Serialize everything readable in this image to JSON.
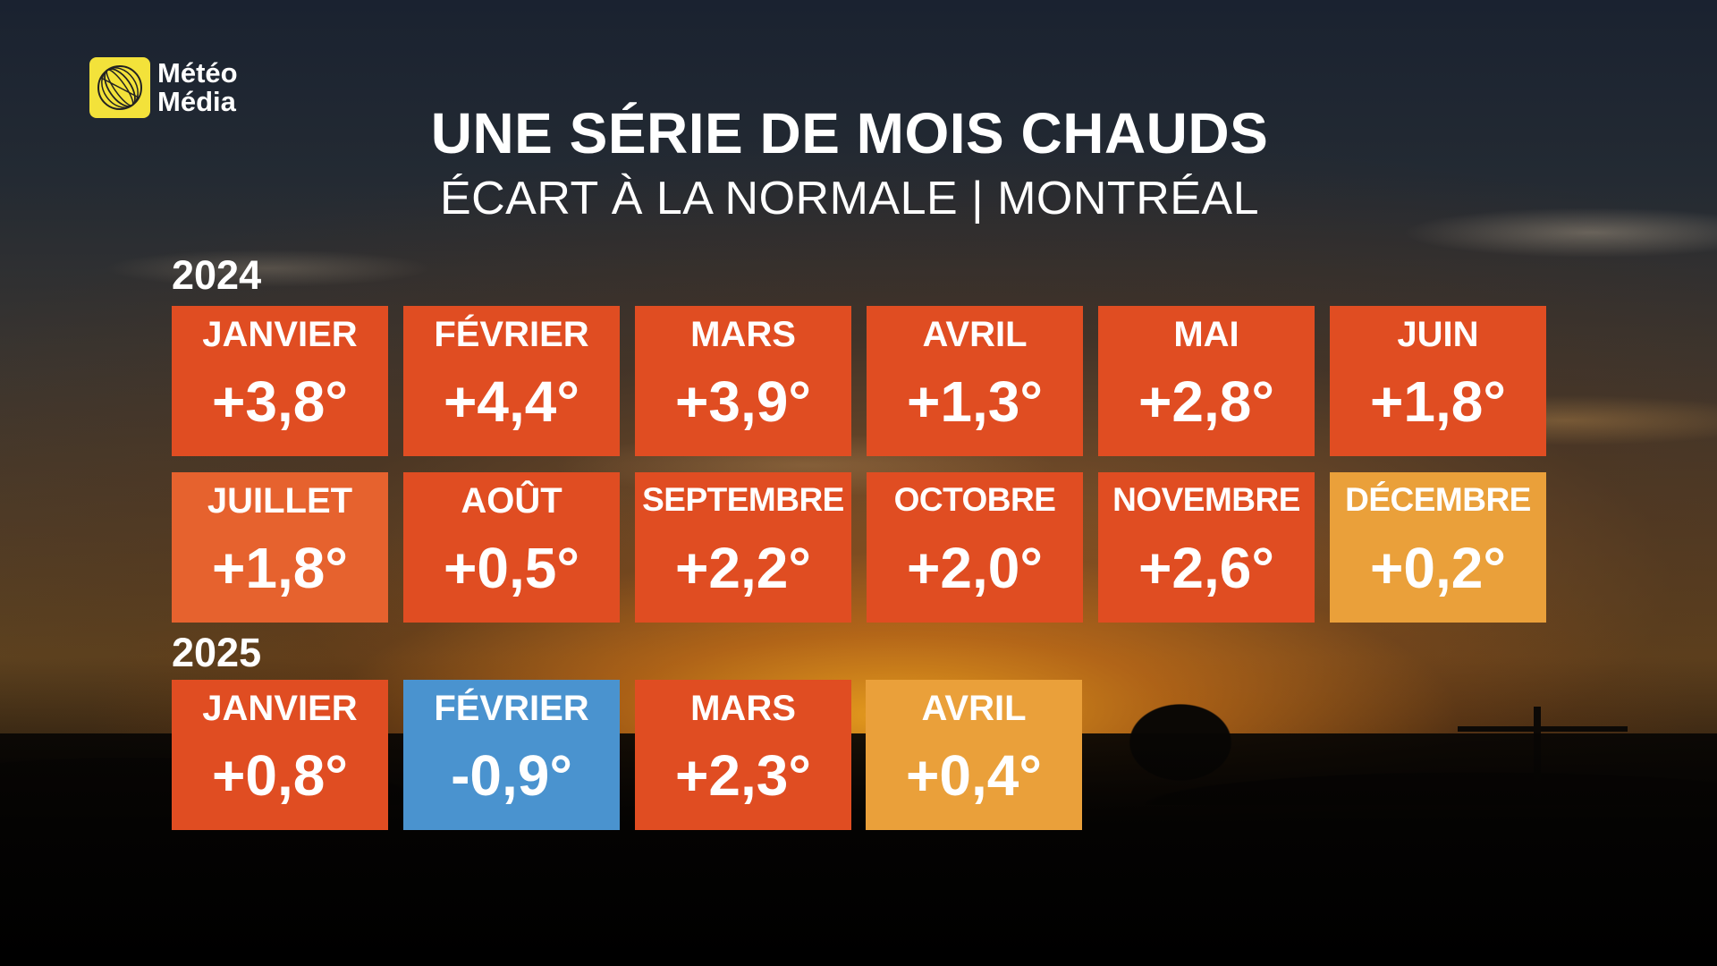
{
  "brand": {
    "line1": "Météo",
    "line2": "Média",
    "logo_color": "#f3e23a"
  },
  "title": "UNE SÉRIE DE MOIS CHAUDS",
  "subtitle": "ÉCART À LA NORMALE | MONTRÉAL",
  "colors": {
    "warm": "#e04d22",
    "warm_light": "#e6622e",
    "mild": "#eaa03a",
    "cold": "#4a93cf"
  },
  "years": [
    {
      "year": "2024",
      "months": [
        {
          "name": "JANVIER",
          "value": "+3,8°",
          "color": "#e04d22"
        },
        {
          "name": "FÉVRIER",
          "value": "+4,4°",
          "color": "#e04d22"
        },
        {
          "name": "MARS",
          "value": "+3,9°",
          "color": "#e04d22"
        },
        {
          "name": "AVRIL",
          "value": "+1,3°",
          "color": "#e04d22"
        },
        {
          "name": "MAI",
          "value": "+2,8°",
          "color": "#e04d22"
        },
        {
          "name": "JUIN",
          "value": "+1,8°",
          "color": "#e04d22"
        },
        {
          "name": "JUILLET",
          "value": "+1,8°",
          "color": "#e6622e"
        },
        {
          "name": "AOÛT",
          "value": "+0,5°",
          "color": "#e04d22"
        },
        {
          "name": "SEPTEMBRE",
          "value": "+2,2°",
          "color": "#e04d22"
        },
        {
          "name": "OCTOBRE",
          "value": "+2,0°",
          "color": "#e04d22"
        },
        {
          "name": "NOVEMBRE",
          "value": "+2,6°",
          "color": "#e04d22"
        },
        {
          "name": "DÉCEMBRE",
          "value": "+0,2°",
          "color": "#eaa03a"
        }
      ]
    },
    {
      "year": "2025",
      "months": [
        {
          "name": "JANVIER",
          "value": "+0,8°",
          "color": "#e04d22"
        },
        {
          "name": "FÉVRIER",
          "value": "-0,9°",
          "color": "#4a93cf"
        },
        {
          "name": "MARS",
          "value": "+2,3°",
          "color": "#e04d22"
        },
        {
          "name": "AVRIL",
          "value": "+0,4°",
          "color": "#eaa03a"
        }
      ]
    }
  ]
}
